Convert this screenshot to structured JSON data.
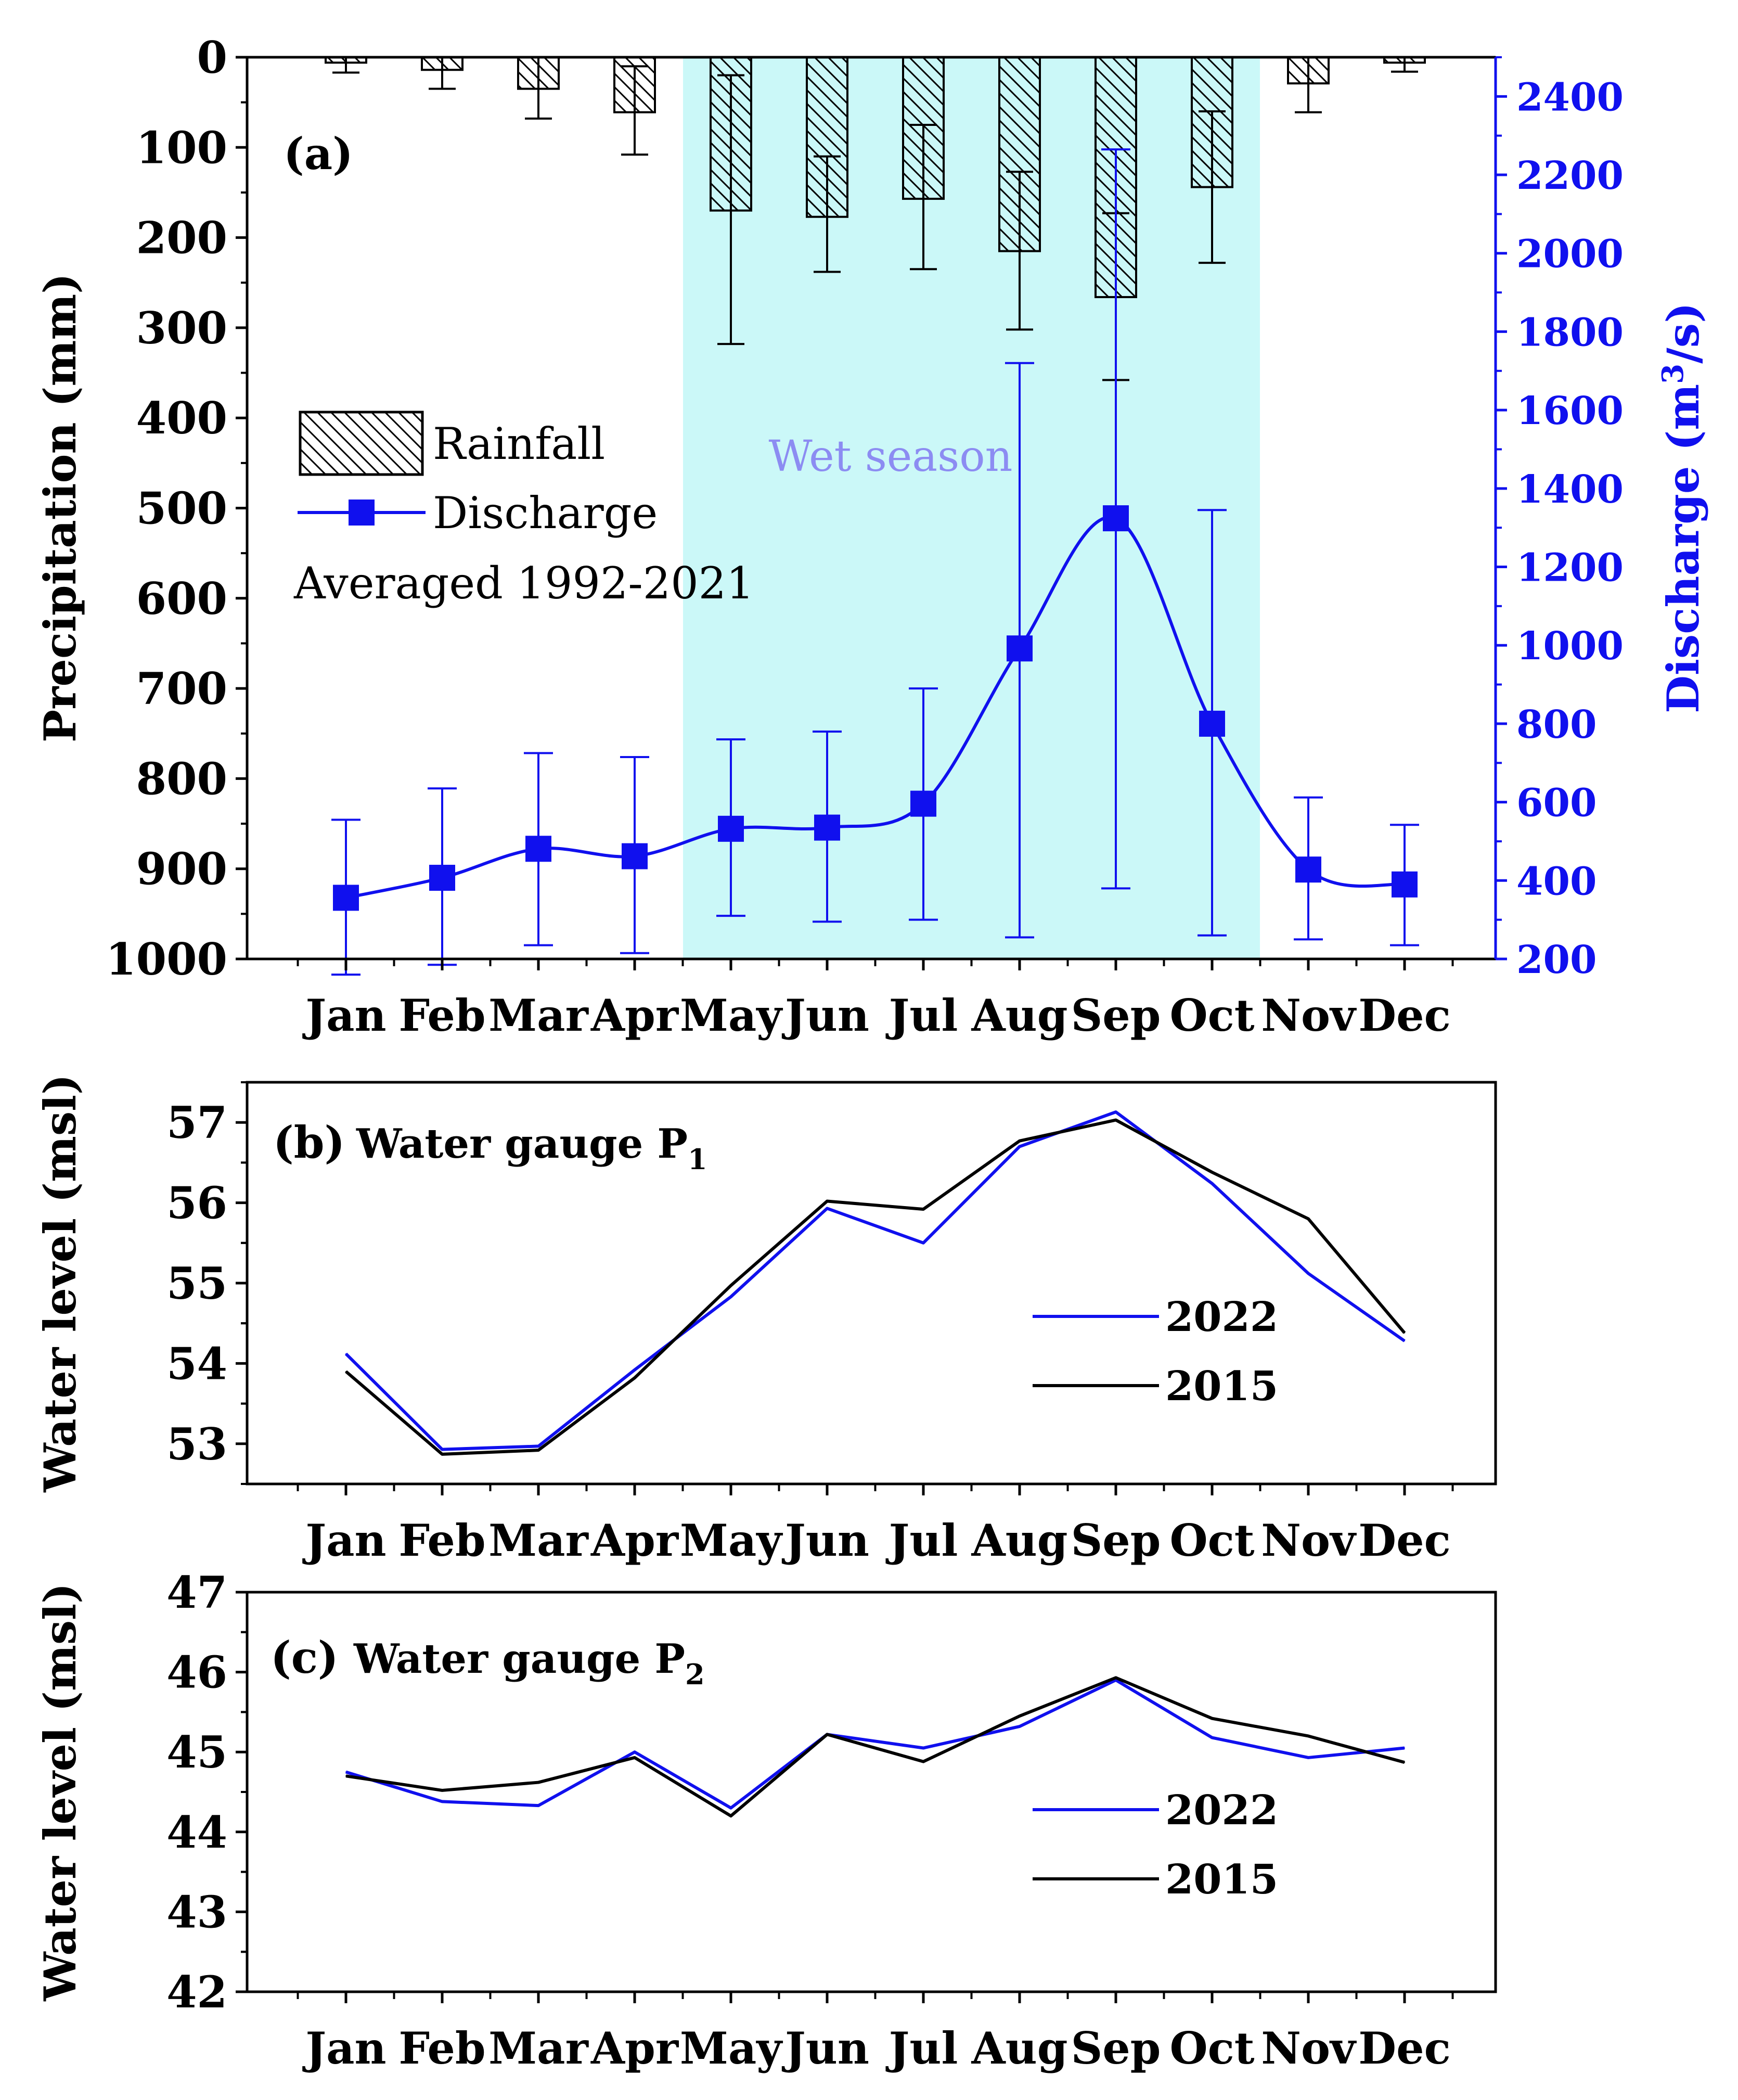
{
  "colors": {
    "wet_season_fill": "#cbf8f8",
    "discharge": "#1010ee",
    "line_2022": "#1010ee",
    "line_2015": "#000000",
    "axis": "#000000"
  },
  "months": [
    "Jan",
    "Feb",
    "Mar",
    "Apr",
    "May",
    "Jun",
    "Jul",
    "Aug",
    "Sep",
    "Oct",
    "Nov",
    "Dec"
  ],
  "chart_data": [
    {
      "type": "bar",
      "panel": "a",
      "label": "(a)",
      "ylabel": "Precipitation (mm)",
      "y2label_main": "Discharge (m",
      "y2label_sup": "3",
      "y2label_end": "/s)",
      "ylim": [
        0,
        1000
      ],
      "ylim_inverted": true,
      "y_ticks": [
        0,
        100,
        200,
        300,
        400,
        500,
        600,
        700,
        800,
        900,
        1000
      ],
      "y2lim": [
        200,
        2500
      ],
      "y2_ticks": [
        200,
        400,
        600,
        800,
        1000,
        1200,
        1400,
        1600,
        1800,
        2000,
        2200,
        2400
      ],
      "wet_season_label": "Wet season",
      "wet_season_range": [
        "May",
        "Oct"
      ],
      "legend": {
        "rainfall": "Rainfall",
        "discharge": "Discharge",
        "note": "Averaged 1992-2021"
      },
      "categories": [
        "Jan",
        "Feb",
        "Mar",
        "Apr",
        "May",
        "Jun",
        "Jul",
        "Aug",
        "Sep",
        "Oct",
        "Nov",
        "Dec"
      ],
      "series": [
        {
          "name": "Rainfall",
          "axis": "left",
          "values": [
            6,
            14,
            35,
            61,
            170,
            177,
            157,
            215,
            266,
            144,
            29,
            6
          ],
          "err_low": [
            0,
            0,
            0,
            10,
            20,
            110,
            75,
            127,
            173,
            60,
            0,
            0
          ],
          "err_high": [
            17,
            35,
            68,
            108,
            318,
            238,
            235,
            302,
            358,
            228,
            61,
            16
          ]
        },
        {
          "name": "Discharge",
          "axis": "right",
          "values": [
            356,
            407,
            481,
            462,
            532,
            535,
            596,
            992,
            1324,
            800,
            428,
            390
          ],
          "err_low": [
            160,
            185,
            235,
            215,
            310,
            295,
            300,
            255,
            380,
            260,
            250,
            235
          ],
          "err_high": [
            555,
            635,
            725,
            715,
            760,
            780,
            890,
            1720,
            2265,
            1345,
            612,
            542
          ]
        }
      ]
    },
    {
      "type": "line",
      "panel": "b",
      "label": "(b)",
      "title_main": "Water gauge P",
      "title_sub": "1",
      "ylabel": "Water level (msl)",
      "ylim": [
        52.5,
        57.5
      ],
      "y_ticks": [
        53,
        54,
        55,
        56,
        57
      ],
      "categories": [
        "Jan",
        "Feb",
        "Mar",
        "Apr",
        "May",
        "Jun",
        "Jul",
        "Aug",
        "Sep",
        "Oct",
        "Nov",
        "Dec"
      ],
      "series": [
        {
          "name": "2022",
          "values": [
            54.12,
            52.93,
            52.97,
            53.92,
            54.83,
            55.93,
            55.5,
            56.7,
            57.13,
            56.24,
            55.12,
            54.28
          ]
        },
        {
          "name": "2015",
          "values": [
            53.9,
            52.87,
            52.92,
            53.82,
            54.97,
            56.02,
            55.92,
            56.77,
            57.03,
            56.38,
            55.8,
            54.38
          ]
        }
      ]
    },
    {
      "type": "line",
      "panel": "c",
      "label": "(c)",
      "title_main": "Water gauge P",
      "title_sub": "2",
      "ylabel": "Water level (msl)",
      "ylim": [
        42,
        47
      ],
      "y_ticks": [
        42,
        43,
        44,
        45,
        46,
        47
      ],
      "categories": [
        "Jan",
        "Feb",
        "Mar",
        "Apr",
        "May",
        "Jun",
        "Jul",
        "Aug",
        "Sep",
        "Oct",
        "Nov",
        "Dec"
      ],
      "series": [
        {
          "name": "2022",
          "values": [
            44.75,
            44.38,
            44.33,
            45.0,
            44.3,
            45.22,
            45.05,
            45.32,
            45.9,
            45.18,
            44.93,
            45.05
          ]
        },
        {
          "name": "2015",
          "values": [
            44.7,
            44.52,
            44.62,
            44.93,
            44.2,
            45.22,
            44.88,
            45.45,
            45.93,
            45.42,
            45.2,
            44.87
          ]
        }
      ]
    }
  ]
}
